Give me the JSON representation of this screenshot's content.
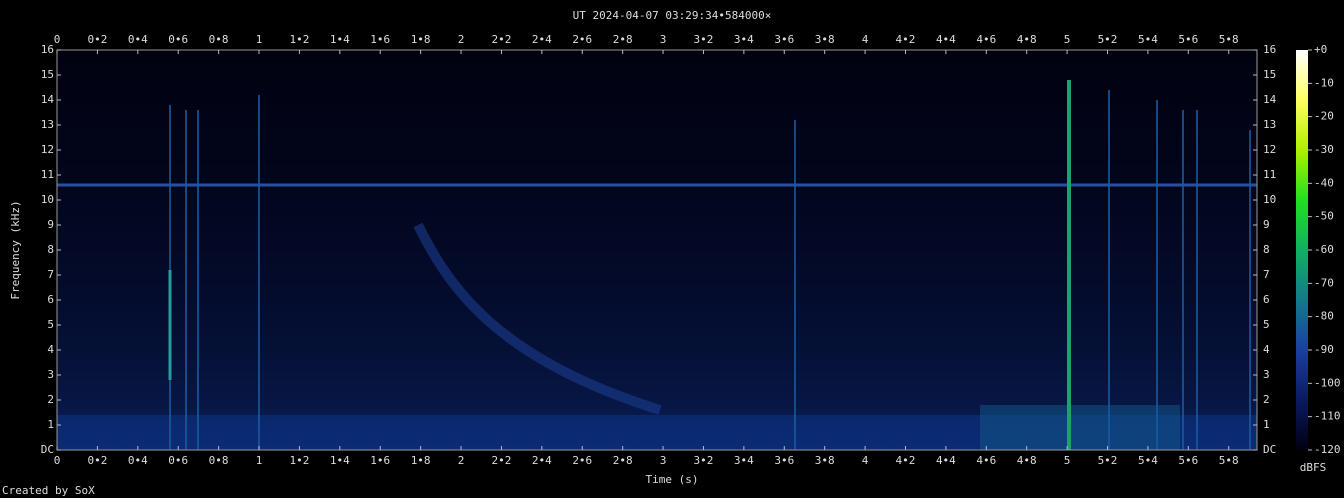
{
  "chart_data": {
    "type": "spectrogram",
    "title": "UT 2024-04-07 03:29:34•584000×",
    "x_label": "Time (s)",
    "y_label": "Frequency (kHz)",
    "colorbar_label": "dBFS",
    "footer": "Created by SoX",
    "xlim": [
      0,
      5.94
    ],
    "xticks": [
      0,
      {
        "value": 0.2,
        "label": "0•2"
      },
      {
        "value": 0.4,
        "label": "0•4"
      },
      {
        "value": 0.6,
        "label": "0•6"
      },
      {
        "value": 0.8,
        "label": "0•8"
      },
      1,
      {
        "value": 1.2,
        "label": "1•2"
      },
      {
        "value": 1.4,
        "label": "1•4"
      },
      {
        "value": 1.6,
        "label": "1•6"
      },
      {
        "value": 1.8,
        "label": "1•8"
      },
      2,
      {
        "value": 2.2,
        "label": "2•2"
      },
      {
        "value": 2.4,
        "label": "2•4"
      },
      {
        "value": 2.6,
        "label": "2•6"
      },
      {
        "value": 2.8,
        "label": "2•8"
      },
      3,
      {
        "value": 3.2,
        "label": "3•2"
      },
      {
        "value": 3.4,
        "label": "3•4"
      },
      {
        "value": 3.6,
        "label": "3•6"
      },
      {
        "value": 3.8,
        "label": "3•8"
      },
      4,
      {
        "value": 4.2,
        "label": "4•2"
      },
      {
        "value": 4.4,
        "label": "4•4"
      },
      {
        "value": 4.6,
        "label": "4•6"
      },
      {
        "value": 4.8,
        "label": "4•8"
      },
      5,
      {
        "value": 5.2,
        "label": "5•2"
      },
      {
        "value": 5.4,
        "label": "5•4"
      },
      {
        "value": 5.6,
        "label": "5•6"
      },
      {
        "value": 5.8,
        "label": "5•8"
      }
    ],
    "ylim": [
      0,
      16
    ],
    "yticks": [
      {
        "value": 0,
        "label": "DC"
      },
      1,
      2,
      3,
      4,
      5,
      6,
      7,
      8,
      9,
      10,
      11,
      12,
      13,
      14,
      15,
      16
    ],
    "clim": [
      -120,
      0
    ],
    "cticks": [
      {
        "value": 0,
        "label": "+0"
      },
      -10,
      -20,
      -30,
      -40,
      -50,
      -60,
      -70,
      -80,
      -90,
      -100,
      -110,
      -120
    ],
    "colormap": [
      "#000010",
      "#0a1a60",
      "#1a3fa0",
      "#127a8a",
      "#10b060",
      "#20e020",
      "#b0f000",
      "#ffff60",
      "#ffffff"
    ]
  }
}
